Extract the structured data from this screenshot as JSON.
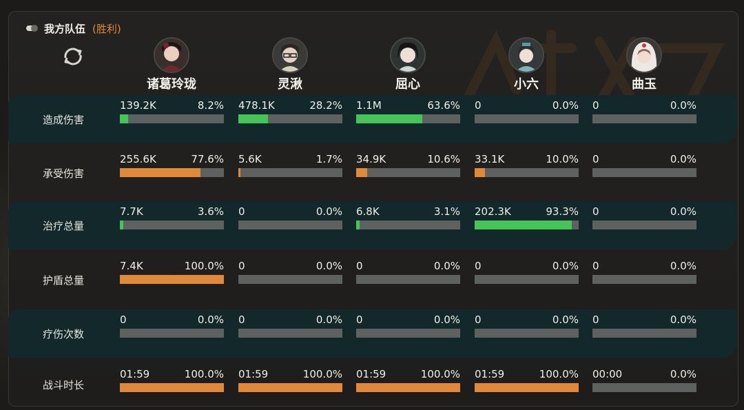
{
  "header": {
    "team_label": "我方队伍",
    "result_label": "(胜利)"
  },
  "characters": [
    {
      "name": "诸葛玲珑"
    },
    {
      "name": "灵湫"
    },
    {
      "name": "屈心"
    },
    {
      "name": "小六"
    },
    {
      "name": "曲玉"
    }
  ],
  "colors": {
    "green": "#47c457",
    "orange": "#e0893a",
    "track": "#5d6260",
    "teal_row": "#12282a"
  },
  "stats": [
    {
      "label": "造成伤害",
      "color": "green",
      "teal": true,
      "cells": [
        {
          "value": "139.2K",
          "percent": "8.2%",
          "fill": 0.082
        },
        {
          "value": "478.1K",
          "percent": "28.2%",
          "fill": 0.282
        },
        {
          "value": "1.1M",
          "percent": "63.6%",
          "fill": 0.636
        },
        {
          "value": "0",
          "percent": "0.0%",
          "fill": 0
        },
        {
          "value": "0",
          "percent": "0.0%",
          "fill": 0
        }
      ]
    },
    {
      "label": "承受伤害",
      "color": "orange",
      "teal": false,
      "cells": [
        {
          "value": "255.6K",
          "percent": "77.6%",
          "fill": 0.776
        },
        {
          "value": "5.6K",
          "percent": "1.7%",
          "fill": 0.017
        },
        {
          "value": "34.9K",
          "percent": "10.6%",
          "fill": 0.106
        },
        {
          "value": "33.1K",
          "percent": "10.0%",
          "fill": 0.1
        },
        {
          "value": "0",
          "percent": "0.0%",
          "fill": 0
        }
      ]
    },
    {
      "label": "治疗总量",
      "color": "green",
      "teal": true,
      "cells": [
        {
          "value": "7.7K",
          "percent": "3.6%",
          "fill": 0.036
        },
        {
          "value": "0",
          "percent": "0.0%",
          "fill": 0
        },
        {
          "value": "6.8K",
          "percent": "3.1%",
          "fill": 0.031
        },
        {
          "value": "202.3K",
          "percent": "93.3%",
          "fill": 0.933
        },
        {
          "value": "0",
          "percent": "0.0%",
          "fill": 0
        }
      ]
    },
    {
      "label": "护盾总量",
      "color": "orange",
      "teal": false,
      "cells": [
        {
          "value": "7.4K",
          "percent": "100.0%",
          "fill": 1.0
        },
        {
          "value": "0",
          "percent": "0.0%",
          "fill": 0
        },
        {
          "value": "0",
          "percent": "0.0%",
          "fill": 0
        },
        {
          "value": "0",
          "percent": "0.0%",
          "fill": 0
        },
        {
          "value": "0",
          "percent": "0.0%",
          "fill": 0
        }
      ]
    },
    {
      "label": "疗伤次数",
      "color": "green",
      "teal": true,
      "cells": [
        {
          "value": "0",
          "percent": "0.0%",
          "fill": 0
        },
        {
          "value": "0",
          "percent": "0.0%",
          "fill": 0
        },
        {
          "value": "0",
          "percent": "0.0%",
          "fill": 0
        },
        {
          "value": "0",
          "percent": "0.0%",
          "fill": 0
        },
        {
          "value": "0",
          "percent": "0.0%",
          "fill": 0
        }
      ]
    },
    {
      "label": "战斗时长",
      "color": "orange",
      "teal": false,
      "cells": [
        {
          "value": "01:59",
          "percent": "100.0%",
          "fill": 1.0
        },
        {
          "value": "01:59",
          "percent": "100.0%",
          "fill": 1.0
        },
        {
          "value": "01:59",
          "percent": "100.0%",
          "fill": 1.0
        },
        {
          "value": "01:59",
          "percent": "100.0%",
          "fill": 1.0
        },
        {
          "value": "00:00",
          "percent": "0.0%",
          "fill": 0
        }
      ]
    }
  ]
}
